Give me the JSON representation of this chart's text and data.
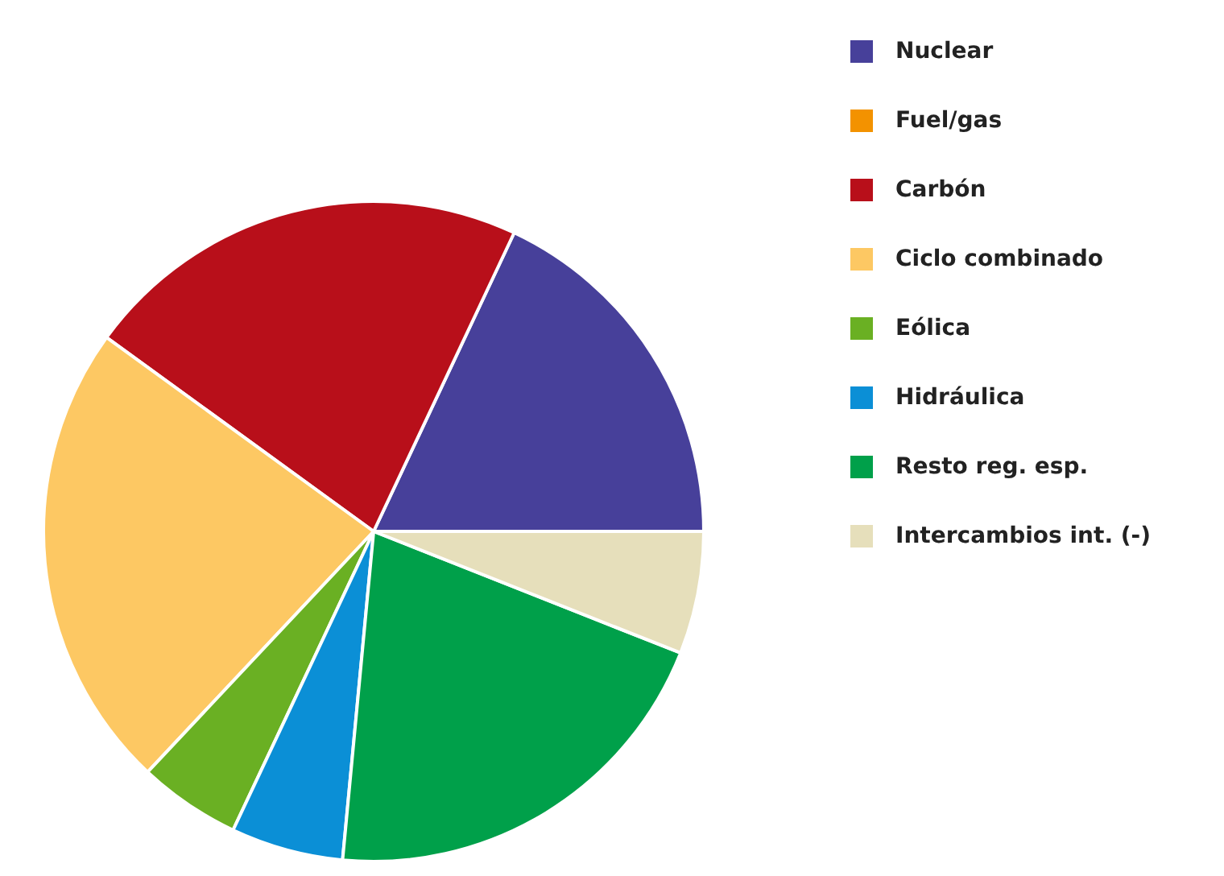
{
  "chart_data": {
    "type": "pie",
    "categories": [
      "Nuclear",
      "Fuel/gas",
      "Carbón",
      "Ciclo combinado",
      "Eólica",
      "Hidráulica",
      "Resto reg. esp.",
      "Intercambios int. (-)"
    ],
    "values": [
      18,
      0,
      22,
      23,
      5,
      5.5,
      20.5,
      6
    ],
    "colors": [
      "#47409a",
      "#f39200",
      "#b80f1a",
      "#fdc863",
      "#6ab023",
      "#0b8fd6",
      "#00a04a",
      "#e6dfbb"
    ],
    "legend": "right"
  }
}
